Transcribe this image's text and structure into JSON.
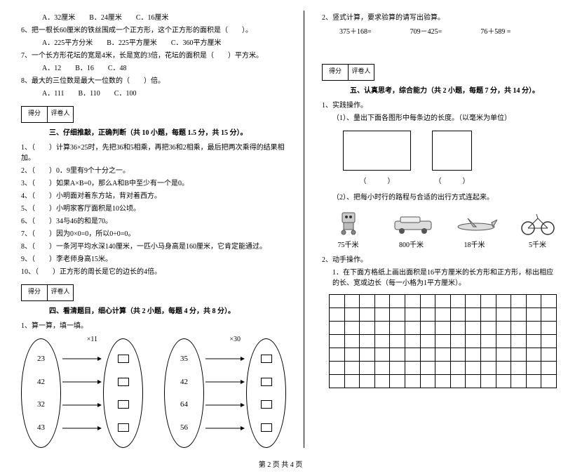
{
  "left": {
    "q5opts": "A．32厘米　　B．24厘米　　C．16厘米",
    "q6": "6、把一根长60厘米的铁丝围成一个正方形，这个正方形的面积是（　　）。",
    "q6opts": "A．225平方分米　　B．225平方厘米　　C．360平方厘米",
    "q7": "7、一个长方形花坛的宽是4米，长是宽的3倍，花坛的面积是（　　）平方米。",
    "q7opts": "A．12　　B．16　　C．48",
    "q8": "8、最大的三位数是最大一位数的（　　）倍。",
    "q8opts": "A．111　　B．110　　C．100",
    "scorer": "得分",
    "marker": "评卷人",
    "sec3": "三、仔细推敲，正确判断（共 10 小题，每题 1.5 分，共 15 分）。",
    "j1": "1、（　　）计算36×25时，先把36和5相乘，再把36和2相乘，最后把两次乘得的结果相加。",
    "j2": "2、（　　）0．9里有9个十分之一。",
    "j3": "3、（　　）如果A×B=0，那么A和B中至少有一个是0。",
    "j4": "4、（　　）小明面对着东方站，背对着西方。",
    "j5": "5、（　　）小明家客厅面积是10公顷。",
    "j6": "6、（　　）34与46的和是70。",
    "j7": "7、（　　）因为0×0=0，所以0÷0=0。",
    "j8": "8、（　　）一条河平均水深140厘米，一匹小马身高是160厘米，它肯定能通过。",
    "j9": "9、（　　）李老师身高15米。",
    "j10": "10、（　　）正方形的周长是它的边长的4倍。",
    "sec4": "四、看清题目，细心计算（共 2 小题，每题 4 分，共 8 分）。",
    "calc1": "1、算一算，填一填。",
    "diag1": {
      "mult": "×11",
      "nums": [
        "23",
        "42",
        "32",
        "43"
      ]
    },
    "diag2": {
      "mult": "×30",
      "nums": [
        "35",
        "42",
        "64",
        "56"
      ]
    }
  },
  "right": {
    "vcalc_title": "2、竖式计算，要求验算的请写出验算。",
    "vcalc": [
      "375＋168=",
      "709－425=",
      "76＋589 ="
    ],
    "scorer": "得分",
    "marker": "评卷人",
    "sec5": "五、认真思考，综合能力（共 2 小题，每题 7 分，共 14 分）。",
    "p1": "1、实践操作。",
    "p1a": "（1）、量出下面各图形中每条边的长度。（以毫米为单位）",
    "paren_l": "（　　　）",
    "paren_r": "（　　　）",
    "p1b": "（2）、把每小时行的路程与合适的出行方式连起来。",
    "labels": [
      "75千米",
      "800千米",
      "18千米",
      "5千米"
    ],
    "p2": "2、动手操作。",
    "p2a": "1．在下面方格纸上画出面积是16平方厘米的长方形和正方形，标出相应的长、宽或边长（每一小格为1平方厘米）。",
    "grid": {
      "rows": 7,
      "cols": 15
    }
  },
  "footer": "第 2 页 共 4 页"
}
